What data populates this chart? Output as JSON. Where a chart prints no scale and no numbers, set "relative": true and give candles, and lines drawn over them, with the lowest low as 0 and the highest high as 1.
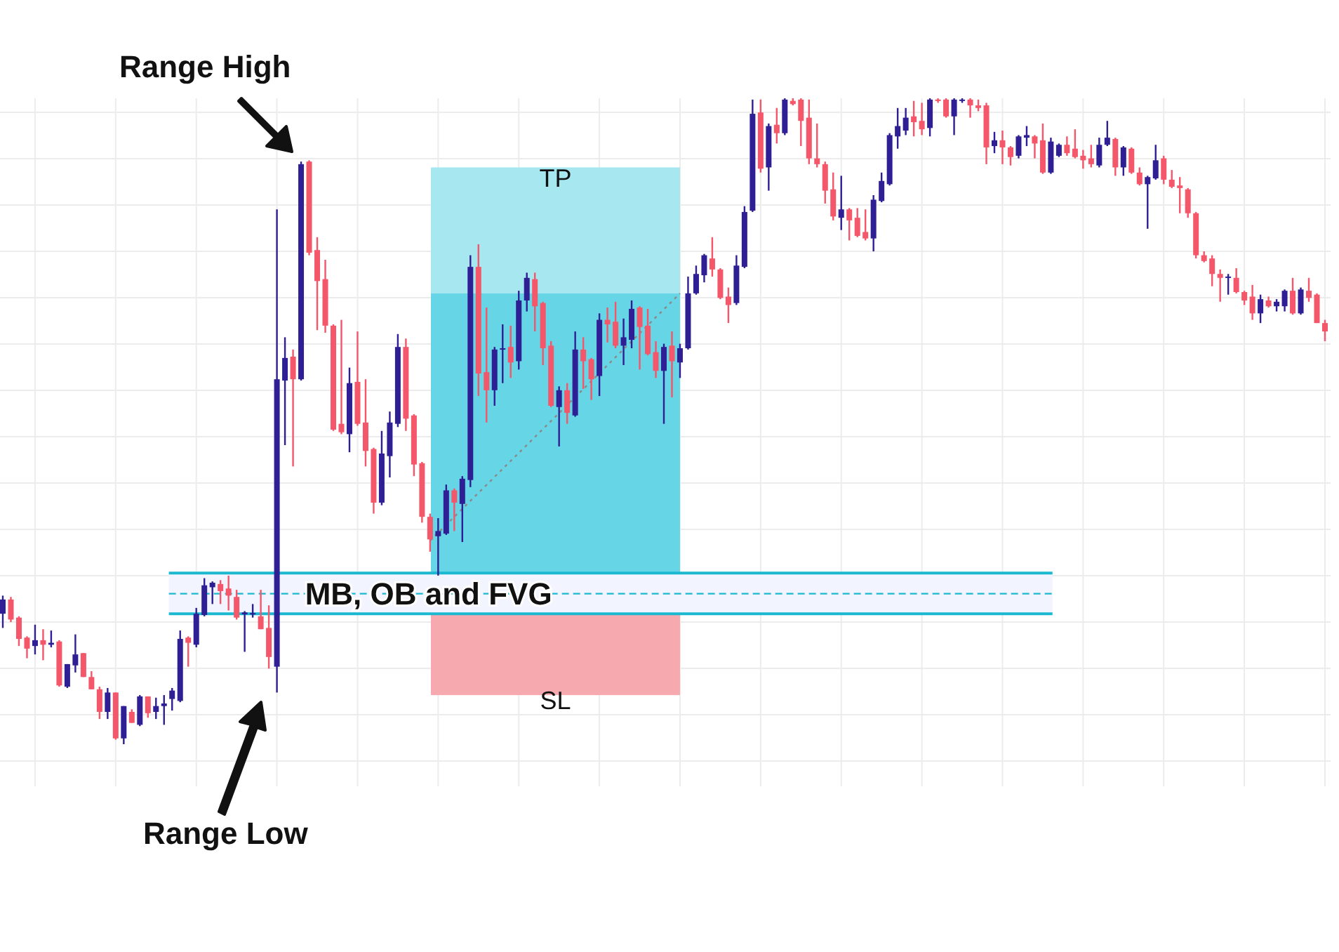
{
  "chart_data": {
    "type": "candlestick",
    "relative": true,
    "grid": true,
    "categories": [
      null,
      null,
      null,
      null,
      null,
      null,
      null,
      null,
      null,
      null,
      null,
      null,
      null,
      null,
      null,
      null,
      null,
      null,
      null,
      null,
      null,
      null,
      null,
      null,
      null,
      null,
      null,
      null,
      null,
      null,
      null,
      null,
      null,
      null,
      null,
      null,
      null,
      null,
      null,
      null,
      null,
      null,
      null,
      null,
      null,
      null,
      null,
      null,
      null,
      null,
      null,
      null,
      null,
      null,
      null,
      null,
      null,
      null,
      null,
      null,
      null,
      null,
      null,
      null,
      null,
      null,
      null,
      null,
      null,
      null,
      null,
      null,
      null,
      null,
      null,
      null,
      null,
      null,
      null,
      null,
      null,
      null,
      null,
      null,
      null,
      null,
      null,
      null,
      null,
      null,
      null,
      null,
      null,
      null,
      null,
      null,
      null,
      null,
      null,
      null,
      null,
      null,
      null,
      null,
      null,
      null,
      null,
      null,
      null,
      null,
      null,
      null,
      null,
      null,
      null,
      null,
      null,
      null,
      null,
      null,
      null,
      null,
      null,
      null,
      null,
      null,
      null,
      null,
      null,
      null,
      null,
      null,
      null,
      null,
      null,
      null,
      null,
      null,
      null,
      null,
      null,
      null,
      null,
      null,
      null,
      null,
      null,
      null,
      null,
      null,
      null,
      null,
      null,
      null,
      null,
      null,
      null,
      null,
      null,
      null,
      null,
      null,
      null,
      null,
      null
    ],
    "ohlc": [
      [
        0.202,
        0.23,
        0.18,
        0.224
      ],
      [
        0.224,
        0.228,
        0.189,
        0.193
      ],
      [
        0.196,
        0.198,
        0.152,
        0.163
      ],
      [
        0.165,
        0.167,
        0.133,
        0.148
      ],
      [
        0.152,
        0.185,
        0.139,
        0.161
      ],
      [
        0.161,
        0.178,
        0.13,
        0.154
      ],
      [
        0.154,
        0.176,
        0.15,
        0.157
      ],
      [
        0.159,
        0.161,
        0.089,
        0.091
      ],
      [
        0.089,
        0.124,
        0.087,
        0.124
      ],
      [
        0.122,
        0.17,
        0.111,
        0.139
      ],
      [
        0.141,
        0.141,
        0.104,
        0.104
      ],
      [
        0.104,
        0.113,
        0.085,
        0.085
      ],
      [
        0.085,
        0.089,
        0.039,
        0.05
      ],
      [
        0.05,
        0.087,
        0.039,
        0.08
      ],
      [
        0.08,
        0.08,
        0.007,
        0.009
      ],
      [
        0.009,
        0.059,
        0,
        0.059
      ],
      [
        0.05,
        0.054,
        0.033,
        0.033
      ],
      [
        0.03,
        0.076,
        0.028,
        0.074
      ],
      [
        0.074,
        0.074,
        0.041,
        0.048
      ],
      [
        0.05,
        0.072,
        0.039,
        0.059
      ],
      [
        0.059,
        0.076,
        0.03,
        0.063
      ],
      [
        0.07,
        0.087,
        0.052,
        0.083
      ],
      [
        0.067,
        0.176,
        0.065,
        0.163
      ],
      [
        0.165,
        0.167,
        0.12,
        0.157
      ],
      [
        0.154,
        0.211,
        0.15,
        0.202
      ],
      [
        0.2,
        0.257,
        0.198,
        0.246
      ],
      [
        0.243,
        0.252,
        0.217,
        0.25
      ],
      [
        0.248,
        0.254,
        0.217,
        0.237
      ],
      [
        0.241,
        0.261,
        0.207,
        0.23
      ],
      [
        0.228,
        0.239,
        0.193,
        0.196
      ],
      [
        0.201,
        0.206,
        0.143,
        0.204
      ],
      [
        0.201,
        0.217,
        0.196,
        0.203
      ],
      [
        0.198,
        0.239,
        0.178,
        0.178
      ],
      [
        0.18,
        0.215,
        0.117,
        0.135
      ],
      [
        0.12,
        0.828,
        0.08,
        0.565
      ],
      [
        0.563,
        0.63,
        0.463,
        0.598
      ],
      [
        0.6,
        0.611,
        0.43,
        0.565
      ],
      [
        0.565,
        0.902,
        0.563,
        0.898
      ],
      [
        0.902,
        0.904,
        0.757,
        0.761
      ],
      [
        0.765,
        0.785,
        0.641,
        0.717
      ],
      [
        0.72,
        0.75,
        0.637,
        0.648
      ],
      [
        0.648,
        0.65,
        0.485,
        0.487
      ],
      [
        0.496,
        0.657,
        0.48,
        0.483
      ],
      [
        0.48,
        0.583,
        0.452,
        0.559
      ],
      [
        0.561,
        0.639,
        0.493,
        0.496
      ],
      [
        0.498,
        0.565,
        0.43,
        0.454
      ],
      [
        0.457,
        0.459,
        0.357,
        0.374
      ],
      [
        0.374,
        0.485,
        0.37,
        0.45
      ],
      [
        0.446,
        0.515,
        0.413,
        0.498
      ],
      [
        0.496,
        0.635,
        0.491,
        0.615
      ],
      [
        0.615,
        0.628,
        0.485,
        0.504
      ],
      [
        0.509,
        0.511,
        0.415,
        0.433
      ],
      [
        0.435,
        0.437,
        0.343,
        0.352
      ],
      [
        0.352,
        0.357,
        0.298,
        0.317
      ],
      [
        0.322,
        0.35,
        0.261,
        0.33
      ],
      [
        0.326,
        0.402,
        0.324,
        0.393
      ],
      [
        0.393,
        0.396,
        0.33,
        0.374
      ],
      [
        0.372,
        0.415,
        0.313,
        0.411
      ],
      [
        0.409,
        0.757,
        0.398,
        0.739
      ],
      [
        0.739,
        0.774,
        0.539,
        0.574
      ],
      [
        0.576,
        0.676,
        0.498,
        0.548
      ],
      [
        0.548,
        0.615,
        0.524,
        0.611
      ],
      [
        0.611,
        0.65,
        0.559,
        0.613
      ],
      [
        0.615,
        0.648,
        0.567,
        0.591
      ],
      [
        0.593,
        0.702,
        0.58,
        0.687
      ],
      [
        0.687,
        0.73,
        0.67,
        0.722
      ],
      [
        0.72,
        0.73,
        0.639,
        0.678
      ],
      [
        0.683,
        0.685,
        0.587,
        0.613
      ],
      [
        0.617,
        0.624,
        0.522,
        0.524
      ],
      [
        0.522,
        0.554,
        0.461,
        0.548
      ],
      [
        0.548,
        0.559,
        0.496,
        0.513
      ],
      [
        0.509,
        0.639,
        0.507,
        0.611
      ],
      [
        0.611,
        0.63,
        0.55,
        0.593
      ],
      [
        0.596,
        0.598,
        0.533,
        0.565
      ],
      [
        0.57,
        0.667,
        0.539,
        0.657
      ],
      [
        0.657,
        0.676,
        0.622,
        0.65
      ],
      [
        0.654,
        0.685,
        0.613,
        0.617
      ],
      [
        0.617,
        0.659,
        0.587,
        0.63
      ],
      [
        0.626,
        0.687,
        0.613,
        0.674
      ],
      [
        0.676,
        0.678,
        0.58,
        0.646
      ],
      [
        0.648,
        0.674,
        0.602,
        0.604
      ],
      [
        0.607,
        0.624,
        0.567,
        0.578
      ],
      [
        0.578,
        0.62,
        0.496,
        0.615
      ],
      [
        0.617,
        0.639,
        0.537,
        0.593
      ],
      [
        0.591,
        0.62,
        0.567,
        0.613
      ],
      [
        0.613,
        0.724,
        0.611,
        0.698
      ],
      [
        0.698,
        0.741,
        0.696,
        0.728
      ],
      [
        0.726,
        0.759,
        0.715,
        0.757
      ],
      [
        0.752,
        0.785,
        0.724,
        0.735
      ],
      [
        0.735,
        0.737,
        0.689,
        0.691
      ],
      [
        0.693,
        0.707,
        0.652,
        0.68
      ],
      [
        0.683,
        0.757,
        0.68,
        0.741
      ],
      [
        0.739,
        0.833,
        0.737,
        0.824
      ],
      [
        0.826,
        0.998,
        0.824,
        0.976
      ],
      [
        0.978,
        0.998,
        0.885,
        0.891
      ],
      [
        0.893,
        0.961,
        0.857,
        0.957
      ],
      [
        0.959,
        0.985,
        0.93,
        0.946
      ],
      [
        0.946,
        1,
        0.943,
        0.998
      ],
      [
        0.996,
        1,
        0.989,
        0.991
      ],
      [
        0.998,
        1,
        0.926,
        0.965
      ],
      [
        0.97,
        0.998,
        0.898,
        0.907
      ],
      [
        0.907,
        0.961,
        0.893,
        0.898
      ],
      [
        0.898,
        0.902,
        0.837,
        0.857
      ],
      [
        0.859,
        0.885,
        0.811,
        0.817
      ],
      [
        0.815,
        0.88,
        0.796,
        0.828
      ],
      [
        0.828,
        0.83,
        0.78,
        0.811
      ],
      [
        0.815,
        0.83,
        0.785,
        0.787
      ],
      [
        0.793,
        0.828,
        0.78,
        0.783
      ],
      [
        0.783,
        0.85,
        0.763,
        0.843
      ],
      [
        0.841,
        0.885,
        0.839,
        0.872
      ],
      [
        0.867,
        0.946,
        0.865,
        0.943
      ],
      [
        0.941,
        0.985,
        0.922,
        0.957
      ],
      [
        0.95,
        0.985,
        0.943,
        0.97
      ],
      [
        0.972,
        0.996,
        0.941,
        0.963
      ],
      [
        0.965,
        0.993,
        0.943,
        0.952
      ],
      [
        0.954,
        1,
        0.941,
        0.998
      ],
      [
        0.998,
        1,
        0.993,
        0.996
      ],
      [
        0.998,
        1,
        0.97,
        0.972
      ],
      [
        0.972,
        1,
        0.943,
        0.998
      ],
      [
        0.996,
        1,
        0.993,
        0.998
      ],
      [
        0.998,
        1,
        0.97,
        0.989
      ],
      [
        0.989,
        0.998,
        0.98,
        0.985
      ],
      [
        0.989,
        0.993,
        0.898,
        0.924
      ],
      [
        0.926,
        0.948,
        0.915,
        0.935
      ],
      [
        0.935,
        0.95,
        0.898,
        0.924
      ],
      [
        0.924,
        0.926,
        0.896,
        0.909
      ],
      [
        0.911,
        0.943,
        0.907,
        0.941
      ],
      [
        0.939,
        0.957,
        0.926,
        0.943
      ],
      [
        0.941,
        0.943,
        0.907,
        0.93
      ],
      [
        0.935,
        0.961,
        0.883,
        0.885
      ],
      [
        0.885,
        0.939,
        0.883,
        0.933
      ],
      [
        0.911,
        0.93,
        0.909,
        0.928
      ],
      [
        0.928,
        0.941,
        0.911,
        0.915
      ],
      [
        0.922,
        0.952,
        0.907,
        0.909
      ],
      [
        0.911,
        0.92,
        0.891,
        0.904
      ],
      [
        0.907,
        0.928,
        0.893,
        0.898
      ],
      [
        0.896,
        0.939,
        0.893,
        0.928
      ],
      [
        0.928,
        0.965,
        0.926,
        0.939
      ],
      [
        0.937,
        0.939,
        0.88,
        0.893
      ],
      [
        0.893,
        0.926,
        0.88,
        0.924
      ],
      [
        0.922,
        0.924,
        0.883,
        0.885
      ],
      [
        0.885,
        0.893,
        0.865,
        0.867
      ],
      [
        0.867,
        0.88,
        0.798,
        0.878
      ],
      [
        0.876,
        0.928,
        0.874,
        0.904
      ],
      [
        0.907,
        0.911,
        0.867,
        0.874
      ],
      [
        0.874,
        0.889,
        0.861,
        0.863
      ],
      [
        0.865,
        0.878,
        0.822,
        0.861
      ],
      [
        0.859,
        0.861,
        0.815,
        0.822
      ],
      [
        0.822,
        0.824,
        0.752,
        0.757
      ],
      [
        0.757,
        0.763,
        0.746,
        0.748
      ],
      [
        0.752,
        0.757,
        0.709,
        0.728
      ],
      [
        0.728,
        0.735,
        0.685,
        0.722
      ],
      [
        0.722,
        0.728,
        0.696,
        0.724
      ],
      [
        0.722,
        0.737,
        0.698,
        0.7
      ],
      [
        0.7,
        0.702,
        0.68,
        0.687
      ],
      [
        0.693,
        0.711,
        0.657,
        0.667
      ],
      [
        0.667,
        0.696,
        0.652,
        0.689
      ],
      [
        0.687,
        0.693,
        0.676,
        0.678
      ],
      [
        0.678,
        0.689,
        0.67,
        0.685
      ],
      [
        0.678,
        0.704,
        0.67,
        0.702
      ],
      [
        0.702,
        0.722,
        0.665,
        0.667
      ],
      [
        0.667,
        0.707,
        0.665,
        0.704
      ],
      [
        0.702,
        0.722,
        0.685,
        0.691
      ],
      [
        0.696,
        0.698,
        0.652,
        0.652
      ],
      [
        0.652,
        0.657,
        0.624,
        0.639
      ]
    ],
    "series": [
      {
        "type": "line",
        "values": [
          null,
          null,
          null,
          null,
          null,
          null,
          null,
          null,
          null,
          null,
          null,
          null,
          null,
          null,
          null,
          null,
          null,
          null,
          null,
          null,
          null,
          null,
          null,
          null,
          null,
          null,
          null,
          null,
          null,
          null,
          null,
          null,
          null,
          null,
          null,
          null,
          null,
          null,
          null,
          null,
          null,
          null,
          null,
          null,
          null,
          null,
          null,
          null,
          null,
          null,
          null,
          null,
          null,
          0.315,
          null,
          null,
          null,
          null,
          null,
          null,
          null,
          null,
          null,
          null,
          null,
          null,
          null,
          null,
          null,
          null,
          null,
          null,
          null,
          null,
          null,
          null,
          null,
          null,
          null,
          null,
          null,
          null,
          null,
          null,
          0.698,
          null,
          null,
          null,
          null,
          null,
          null,
          null,
          null,
          null,
          null,
          null,
          null,
          null,
          null,
          null,
          null,
          null,
          null,
          null,
          null,
          null,
          null,
          null,
          null,
          null,
          null,
          null,
          null,
          null,
          null,
          null,
          null,
          null,
          null,
          null,
          null,
          null,
          null,
          null,
          null,
          null,
          null,
          null,
          null,
          null,
          null,
          null,
          null,
          null,
          null,
          null,
          null,
          null,
          null,
          null,
          null,
          null,
          null,
          null,
          null,
          null,
          null,
          null,
          null,
          null,
          null,
          null,
          null,
          null,
          null,
          null,
          null,
          null,
          null,
          null,
          null,
          null,
          null,
          null,
          null
        ],
        "color": "#8a8a8a",
        "line_style": "dotted"
      }
    ],
    "bands": [
      {
        "axis": "y",
        "from": 0.698,
        "to": 0.893,
        "label": "TP",
        "color": "#a6e7f0"
      },
      {
        "axis": "y",
        "from": 0.261,
        "to": 0.698,
        "color": "#66d5e5"
      },
      {
        "axis": "y",
        "from": 0.076,
        "to": 0.261,
        "label": "SL",
        "color": "#f7a9b0"
      },
      {
        "axis": "y",
        "from": 0.202,
        "to": 0.265,
        "label": "MB, OB and FVG",
        "color": "#f2f5ff"
      }
    ],
    "ref_lines": [
      {
        "axis": "y",
        "value": 0.265,
        "color": "#1bb9d0",
        "line_style": "solid"
      },
      {
        "axis": "y",
        "value": 0.233,
        "color": "#1bb9d0",
        "line_style": "dashed"
      },
      {
        "axis": "y",
        "value": 0.202,
        "color": "#1bb9d0",
        "line_style": "solid"
      }
    ],
    "annotations": [
      "Range High",
      "Range Low"
    ]
  }
}
